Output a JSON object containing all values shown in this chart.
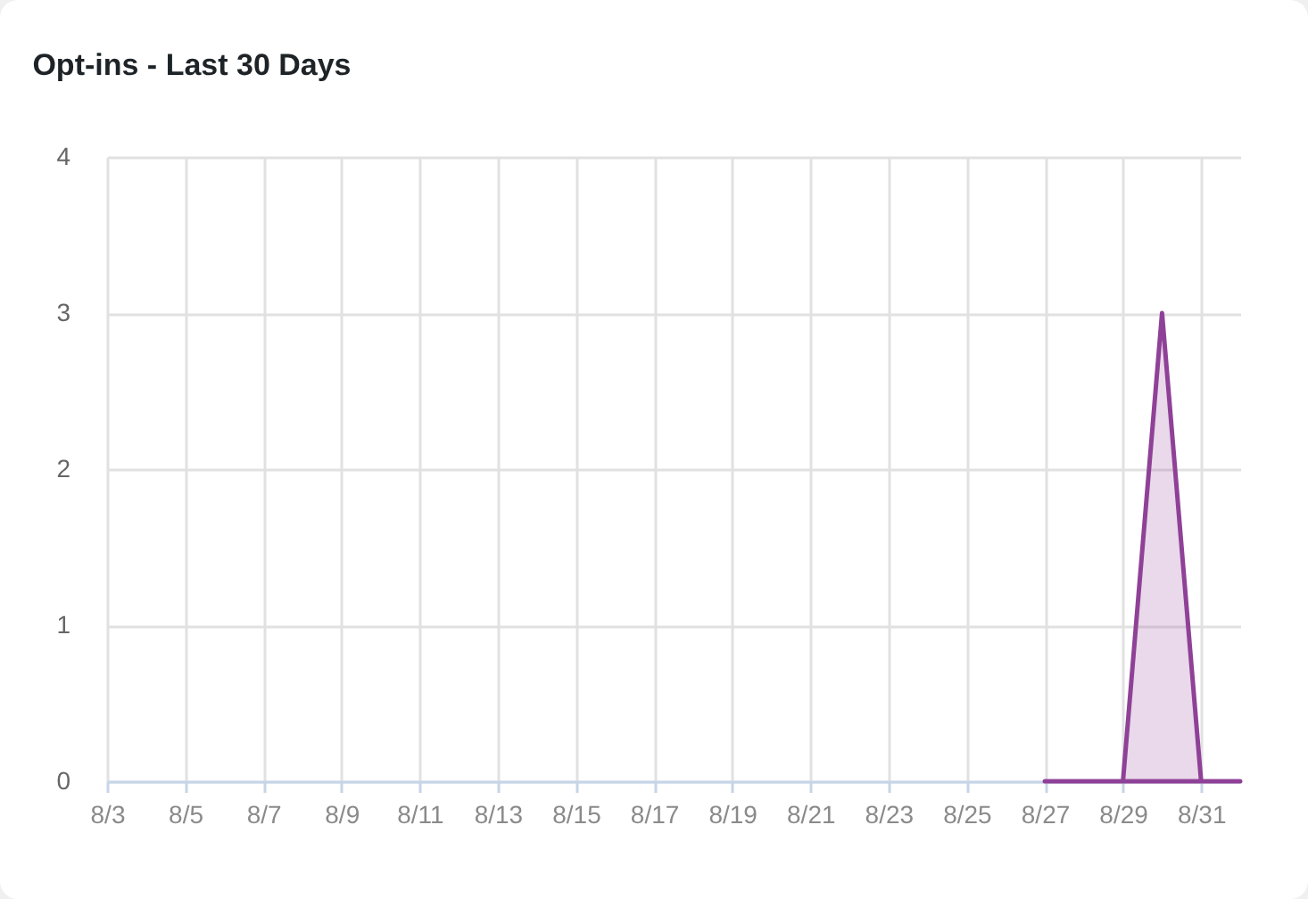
{
  "chart_data": {
    "type": "area",
    "title": "Opt-ins - Last 30 Days",
    "x": [
      "--08-27",
      "--08-28",
      "--08-29",
      "--08-30",
      "--08-31",
      "--09-01"
    ],
    "series": [
      {
        "color": "#8f4197",
        "values": [
          0,
          0,
          0,
          3,
          0,
          0
        ]
      }
    ],
    "xlim": [
      "--08-03",
      "--09-01"
    ],
    "xticks": [
      {
        "value": "--08-03",
        "label": "8/3"
      },
      {
        "value": "--08-05",
        "label": "8/5"
      },
      {
        "value": "--08-07",
        "label": "8/7"
      },
      {
        "value": "--08-09",
        "label": "8/9"
      },
      {
        "value": "--08-11",
        "label": "8/11"
      },
      {
        "value": "--08-13",
        "label": "8/13"
      },
      {
        "value": "--08-15",
        "label": "8/15"
      },
      {
        "value": "--08-17",
        "label": "8/17"
      },
      {
        "value": "--08-19",
        "label": "8/19"
      },
      {
        "value": "--08-21",
        "label": "8/21"
      },
      {
        "value": "--08-23",
        "label": "8/23"
      },
      {
        "value": "--08-25",
        "label": "8/25"
      },
      {
        "value": "--08-27",
        "label": "8/27"
      },
      {
        "value": "--08-29",
        "label": "8/29"
      },
      {
        "value": "--08-31",
        "label": "8/31"
      }
    ],
    "ylim": [
      0,
      4
    ],
    "yticks": [
      0,
      1,
      2,
      3,
      4
    ],
    "grid": true
  }
}
